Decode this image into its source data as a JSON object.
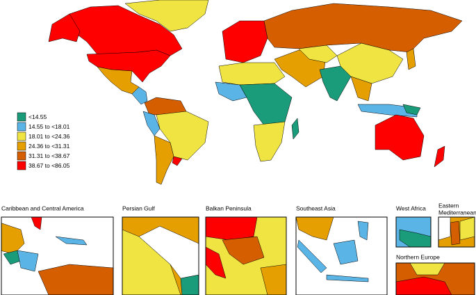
{
  "legend": {
    "items": [
      {
        "label": "<14.55",
        "color": "#1a9c7a"
      },
      {
        "label": "14.55 to <18.01",
        "color": "#5ab4e5"
      },
      {
        "label": "18.01 to <24.36",
        "color": "#f0e442"
      },
      {
        "label": "24.36 to <31.31",
        "color": "#e69f00"
      },
      {
        "label": "31.31 to <38.67",
        "color": "#d55e00"
      },
      {
        "label": "38.67 to <86.05",
        "color": "#ff0000"
      }
    ]
  },
  "insets": [
    {
      "title": "Caribbean and Central America"
    },
    {
      "title": "Persian Gulf"
    },
    {
      "title": "Balkan Peninsula"
    },
    {
      "title": "Southeast Asia"
    },
    {
      "title": "West Africa"
    },
    {
      "title_lines": [
        "Eastern",
        "Mediterranean"
      ]
    },
    {
      "title": "Northern Europe"
    }
  ]
}
